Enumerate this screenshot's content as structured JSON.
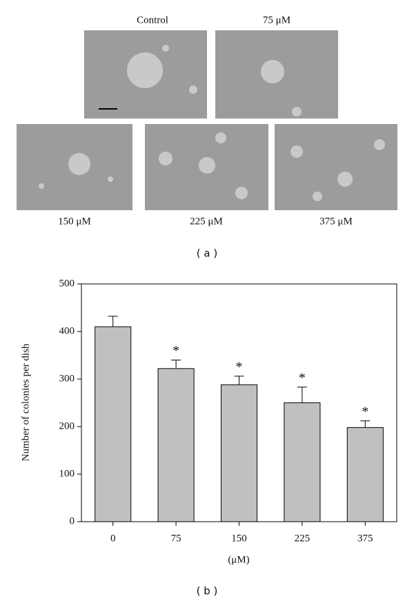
{
  "panel_a": {
    "images": [
      {
        "label": "Control"
      },
      {
        "label": "75 μM"
      },
      {
        "label": "150 μM"
      },
      {
        "label": "225 μM"
      },
      {
        "label": "375 μM"
      }
    ],
    "caption": "( a )"
  },
  "chart_data": {
    "type": "bar",
    "categories": [
      "0",
      "75",
      "150",
      "225",
      "375"
    ],
    "values": [
      410,
      322,
      288,
      250,
      198
    ],
    "errors": [
      22,
      18,
      18,
      33,
      14
    ],
    "markers": [
      null,
      "*",
      "*",
      "*",
      "*"
    ],
    "color": "#c0c0c0",
    "ylabel": "Number of colonies per dish",
    "xlabel": "(μM)",
    "ylim": [
      0,
      500
    ],
    "yticks": [
      0,
      100,
      200,
      300,
      400,
      500
    ],
    "caption": "( b )"
  }
}
